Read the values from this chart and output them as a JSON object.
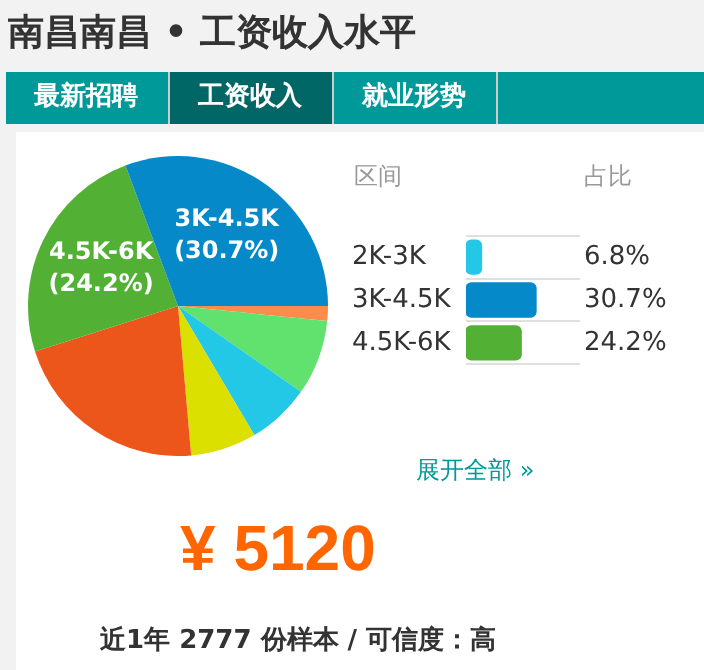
{
  "chart_data": [
    {
      "type": "pie",
      "title": "南昌南昌 • 工资收入水平",
      "categories": [
        null,
        null,
        null,
        null,
        null,
        "4.5K-6K",
        "3K-4.5K"
      ],
      "values": [
        1.6,
        8.1,
        6.8,
        7.1,
        21.5,
        24.2,
        30.7
      ],
      "colors": [
        "#fb8c4c",
        "#61e26f",
        "#22c8e5",
        "#dbe000",
        "#ec561b",
        "#52b135",
        "#0589c8"
      ],
      "value_labels": [
        null,
        null,
        null,
        null,
        null,
        "(24.2%)",
        "(30.7%)"
      ],
      "legend": false,
      "annotations": [
        "最新招聘",
        "工资收入",
        "就业形势",
        "¥ 5120",
        "近1年 2777 份样本 / 可信度：高"
      ]
    },
    {
      "type": "bar",
      "orientation": "horizontal",
      "categories": [
        "2K-3K",
        "3K-4.5K",
        "4.5K-6K"
      ],
      "values": [
        6.8,
        30.7,
        24.2
      ],
      "colors": [
        "#22c8e5",
        "#0589c8",
        "#52b135"
      ],
      "value_labels": [
        "6.8%",
        "30.7%",
        "24.2%"
      ],
      "grid": "y",
      "legend": false,
      "annotations": [
        "区间",
        "占比",
        "展开全部 »"
      ]
    }
  ]
}
